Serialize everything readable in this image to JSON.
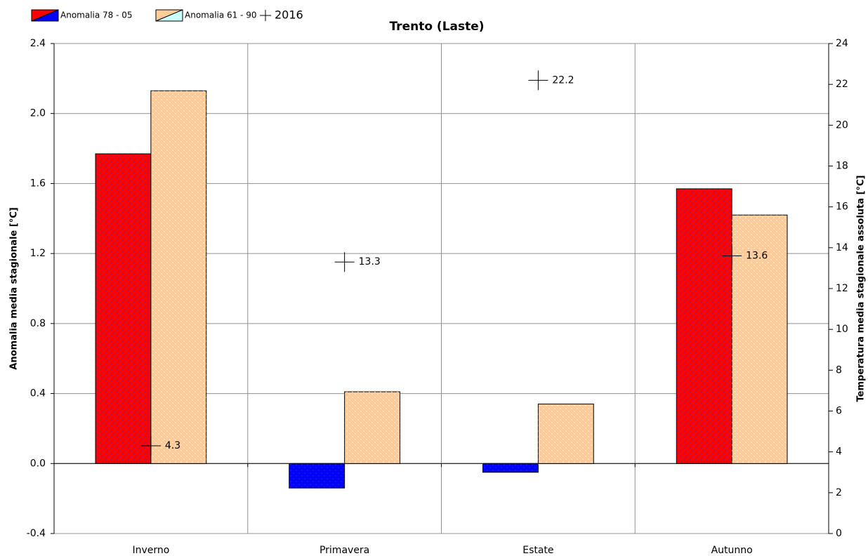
{
  "chart_data": {
    "type": "bar",
    "title": "Trento (Laste)",
    "ylabel": "Anomalia media stagionale [°C]",
    "y2label": "Temperatura media stagionale assoluta [°C]",
    "categories": [
      "Inverno",
      "Primavera",
      "Estate",
      "Autunno"
    ],
    "series": [
      {
        "name": "Anomalia 78 - 05",
        "color": "#ff0000",
        "negative_color": "#0000ff",
        "values": [
          1.77,
          -0.14,
          -0.05,
          1.57
        ]
      },
      {
        "name": "Anomalia 61 - 90",
        "color": "#ffcc99",
        "values": [
          2.13,
          0.41,
          0.34,
          1.42
        ]
      },
      {
        "name": "2016",
        "type": "marker",
        "axis": "y2",
        "color": "#000000",
        "values": [
          4.3,
          13.3,
          22.2,
          13.6
        ]
      }
    ],
    "ylim": [
      -0.4,
      2.4
    ],
    "yticks": [
      -0.4,
      {
        "value": 0,
        "label": "0.0"
      },
      0.4,
      0.8,
      1.2,
      1.6,
      {
        "value": 2,
        "label": "2.0"
      },
      2.4
    ],
    "y2lim": [
      0,
      24
    ],
    "y2ticks": [
      0,
      2,
      4,
      6,
      8,
      10,
      12,
      14,
      16,
      18,
      20,
      22,
      24
    ],
    "grid": true,
    "legend": "top-left"
  }
}
